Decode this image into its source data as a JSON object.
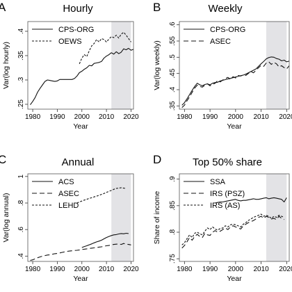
{
  "chart_data": [
    {
      "id": "hourly",
      "type": "line",
      "panel_letter": "A",
      "title": "Hourly",
      "xlabel": "Year",
      "ylabel": "Var(log hourly)",
      "xlim": [
        1978,
        2021
      ],
      "ylim": [
        0.24,
        0.42
      ],
      "xticks": [
        1980,
        1990,
        2000,
        2010,
        2020
      ],
      "yticks": [
        0.25,
        0.3,
        0.35,
        0.4
      ],
      "ytick_labels": [
        ".25",
        ".3",
        ".35",
        ".4"
      ],
      "shaded_region": [
        2012,
        2020
      ],
      "legend": "top-left",
      "series": [
        {
          "name": "CPS-ORG",
          "dash": "solid",
          "x": [
            1979,
            1980,
            1981,
            1982,
            1983,
            1984,
            1985,
            1986,
            1987,
            1988,
            1989,
            1990,
            1991,
            1992,
            1993,
            1994,
            1995,
            1996,
            1997,
            1998,
            1999,
            2000,
            2001,
            2002,
            2003,
            2004,
            2005,
            2006,
            2007,
            2008,
            2009,
            2010,
            2011,
            2012,
            2013,
            2014,
            2015,
            2016,
            2017,
            2018,
            2019,
            2020,
            2021
          ],
          "y": [
            0.249,
            0.256,
            0.264,
            0.275,
            0.283,
            0.29,
            0.297,
            0.3,
            0.299,
            0.298,
            0.297,
            0.298,
            0.301,
            0.301,
            0.301,
            0.301,
            0.301,
            0.301,
            0.303,
            0.308,
            0.315,
            0.318,
            0.322,
            0.325,
            0.33,
            0.329,
            0.334,
            0.335,
            0.336,
            0.338,
            0.345,
            0.349,
            0.352,
            0.356,
            0.353,
            0.358,
            0.354,
            0.357,
            0.364,
            0.362,
            0.365,
            0.361,
            0.363
          ]
        },
        {
          "name": "OEWS",
          "dash": "short",
          "x": [
            1999,
            2000,
            2001,
            2002,
            2003,
            2004,
            2005,
            2006,
            2007,
            2008,
            2009,
            2010,
            2011,
            2012,
            2013,
            2014,
            2015,
            2016,
            2017,
            2018,
            2019,
            2020
          ],
          "y": [
            0.333,
            0.345,
            0.352,
            0.348,
            0.36,
            0.37,
            0.375,
            0.383,
            0.378,
            0.385,
            0.383,
            0.378,
            0.384,
            0.389,
            0.387,
            0.392,
            0.386,
            0.394,
            0.398,
            0.392,
            0.385,
            0.378
          ]
        }
      ]
    },
    {
      "id": "weekly",
      "type": "line",
      "panel_letter": "B",
      "title": "Weekly",
      "xlabel": "Year",
      "ylabel": "Var(log weekly)",
      "xlim": [
        1978,
        2021
      ],
      "ylim": [
        0.34,
        0.61
      ],
      "xticks": [
        1980,
        1990,
        2000,
        2010,
        2020
      ],
      "yticks": [
        0.35,
        0.4,
        0.45,
        0.5,
        0.55,
        0.6
      ],
      "ytick_labels": [
        ".35",
        ".4",
        ".45",
        ".5",
        ".55",
        ".6"
      ],
      "shaded_region": [
        2012,
        2020
      ],
      "legend": "top-left",
      "series": [
        {
          "name": "CPS-ORG",
          "dash": "solid",
          "x": [
            1979,
            1980,
            1981,
            1982,
            1983,
            1984,
            1985,
            1986,
            1987,
            1988,
            1989,
            1990,
            1991,
            1992,
            1993,
            1994,
            1995,
            1996,
            1997,
            1998,
            1999,
            2000,
            2001,
            2002,
            2003,
            2004,
            2005,
            2006,
            2007,
            2008,
            2009,
            2010,
            2011,
            2012,
            2013,
            2014,
            2015,
            2016,
            2017,
            2018,
            2019,
            2020,
            2021
          ],
          "y": [
            0.352,
            0.36,
            0.372,
            0.385,
            0.398,
            0.41,
            0.42,
            0.415,
            0.412,
            0.416,
            0.418,
            0.415,
            0.42,
            0.422,
            0.423,
            0.427,
            0.429,
            0.431,
            0.433,
            0.435,
            0.437,
            0.439,
            0.441,
            0.443,
            0.445,
            0.448,
            0.452,
            0.456,
            0.46,
            0.464,
            0.472,
            0.48,
            0.487,
            0.495,
            0.499,
            0.501,
            0.5,
            0.496,
            0.494,
            0.489,
            0.491,
            0.486,
            0.488
          ]
        },
        {
          "name": "ASEC",
          "dash": "long",
          "x": [
            1979,
            1980,
            1981,
            1982,
            1983,
            1984,
            1985,
            1986,
            1987,
            1988,
            1989,
            1990,
            1991,
            1992,
            1993,
            1994,
            1995,
            1996,
            1997,
            1998,
            1999,
            2000,
            2001,
            2002,
            2003,
            2004,
            2005,
            2006,
            2007,
            2008,
            2009,
            2010,
            2011,
            2012,
            2013,
            2014,
            2015,
            2016,
            2017,
            2018,
            2019,
            2020,
            2021
          ],
          "y": [
            0.345,
            0.352,
            0.366,
            0.378,
            0.392,
            0.405,
            0.414,
            0.41,
            0.408,
            0.414,
            0.418,
            0.412,
            0.416,
            0.42,
            0.428,
            0.424,
            0.43,
            0.434,
            0.438,
            0.432,
            0.44,
            0.436,
            0.444,
            0.442,
            0.446,
            0.444,
            0.45,
            0.456,
            0.452,
            0.46,
            0.468,
            0.475,
            0.472,
            0.482,
            0.486,
            0.478,
            0.484,
            0.48,
            0.47,
            0.474,
            0.468,
            0.464,
            0.474
          ]
        }
      ]
    },
    {
      "id": "annual",
      "type": "line",
      "panel_letter": "C",
      "title": "Annual",
      "xlabel": "Year",
      "ylabel": "Var(log annual)",
      "xlim": [
        1978,
        2021
      ],
      "ylim": [
        0.36,
        1.02
      ],
      "xticks": [
        1980,
        1990,
        2000,
        2010,
        2020
      ],
      "yticks": [
        0.4,
        0.6,
        0.8,
        1.0
      ],
      "ytick_labels": [
        ".4",
        ".6",
        ".8",
        "1"
      ],
      "shaded_region": [
        2012,
        2020
      ],
      "legend": "top-left",
      "series": [
        {
          "name": "ACS",
          "dash": "solid",
          "x": [
            2000,
            2001,
            2002,
            2003,
            2004,
            2005,
            2006,
            2007,
            2008,
            2009,
            2010,
            2011,
            2012,
            2013,
            2014,
            2015,
            2016,
            2017,
            2018,
            2019
          ],
          "y": [
            0.465,
            0.472,
            0.478,
            0.485,
            0.492,
            0.5,
            0.507,
            0.513,
            0.52,
            0.53,
            0.54,
            0.548,
            0.555,
            0.56,
            0.562,
            0.567,
            0.57,
            0.568,
            0.572,
            0.57
          ]
        },
        {
          "name": "ASEC",
          "dash": "long",
          "x": [
            1979,
            1980,
            1981,
            1982,
            1983,
            1984,
            1985,
            1986,
            1987,
            1988,
            1989,
            1990,
            1991,
            1992,
            1993,
            1994,
            1995,
            1996,
            1997,
            1998,
            1999,
            2000,
            2001,
            2002,
            2003,
            2004,
            2005,
            2006,
            2007,
            2008,
            2009,
            2010,
            2011,
            2012,
            2013,
            2014,
            2015,
            2016,
            2017,
            2018,
            2019,
            2020
          ],
          "y": [
            0.368,
            0.372,
            0.38,
            0.388,
            0.394,
            0.4,
            0.404,
            0.408,
            0.41,
            0.414,
            0.418,
            0.42,
            0.424,
            0.428,
            0.432,
            0.436,
            0.438,
            0.44,
            0.442,
            0.444,
            0.446,
            0.45,
            0.452,
            0.455,
            0.458,
            0.46,
            0.462,
            0.465,
            0.468,
            0.47,
            0.474,
            0.478,
            0.48,
            0.485,
            0.488,
            0.49,
            0.492,
            0.488,
            0.495,
            0.49,
            0.488,
            0.484
          ]
        },
        {
          "name": "LEHD",
          "dash": "short",
          "x": [
            1998,
            1999,
            2000,
            2001,
            2002,
            2003,
            2004,
            2005,
            2006,
            2007,
            2008,
            2009,
            2010,
            2011,
            2012,
            2013,
            2014,
            2015,
            2016,
            2017,
            2018
          ],
          "y": [
            0.8,
            0.808,
            0.815,
            0.822,
            0.828,
            0.835,
            0.84,
            0.846,
            0.852,
            0.858,
            0.865,
            0.872,
            0.88,
            0.888,
            0.895,
            0.903,
            0.91,
            0.912,
            0.915,
            0.912,
            0.91
          ]
        }
      ]
    },
    {
      "id": "top50",
      "type": "line",
      "panel_letter": "D",
      "title": "Top 50% share",
      "xlabel": "Year",
      "ylabel": "Share of income",
      "xlim": [
        1978,
        2021
      ],
      "ylim": [
        0.745,
        0.91
      ],
      "xticks": [
        1980,
        1990,
        2000,
        2010,
        2020
      ],
      "yticks": [
        0.75,
        0.8,
        0.85,
        0.9
      ],
      "ytick_labels": [
        ".75",
        ".8",
        ".85",
        ".9"
      ],
      "shaded_region": [
        2012,
        2020
      ],
      "legend": "top-left",
      "series": [
        {
          "name": "SSA",
          "dash": "solid",
          "x": [
            1992,
            1993,
            1994,
            1995,
            1996,
            1997,
            1998,
            1999,
            2000,
            2001,
            2002,
            2003,
            2004,
            2005,
            2006,
            2007,
            2008,
            2009,
            2010,
            2011,
            2012,
            2013,
            2014,
            2015,
            2016,
            2017,
            2018,
            2019,
            2020
          ],
          "y": [
            0.855,
            0.856,
            0.857,
            0.857,
            0.858,
            0.859,
            0.86,
            0.861,
            0.862,
            0.86,
            0.859,
            0.86,
            0.86,
            0.861,
            0.862,
            0.863,
            0.862,
            0.862,
            0.863,
            0.864,
            0.865,
            0.863,
            0.864,
            0.865,
            0.864,
            0.863,
            0.862,
            0.857,
            0.865
          ]
        },
        {
          "name": "IRS (PSZ)",
          "dash": "long",
          "x": [
            1979,
            1980,
            1981,
            1982,
            1983,
            1984,
            1985,
            1986,
            1987,
            1988,
            1989,
            1990,
            1991,
            1992,
            1993,
            1994,
            1995,
            1996,
            1997,
            1998,
            1999,
            2000,
            2001,
            2002,
            2003,
            2004,
            2005,
            2006,
            2007,
            2008,
            2009,
            2010,
            2011,
            2012,
            2013,
            2014,
            2015,
            2016,
            2017,
            2018,
            2019
          ],
          "y": [
            0.77,
            0.775,
            0.782,
            0.79,
            0.785,
            0.792,
            0.796,
            0.792,
            0.79,
            0.798,
            0.795,
            0.794,
            0.8,
            0.803,
            0.8,
            0.802,
            0.805,
            0.808,
            0.805,
            0.81,
            0.812,
            0.81,
            0.808,
            0.806,
            0.812,
            0.815,
            0.818,
            0.82,
            0.822,
            0.825,
            0.828,
            0.83,
            0.826,
            0.83,
            0.828,
            0.825,
            0.826,
            0.824,
            0.83,
            0.826,
            0.824
          ]
        },
        {
          "name": "IRS (AS)",
          "dash": "short",
          "x": [
            1979,
            1980,
            1981,
            1982,
            1983,
            1984,
            1985,
            1986,
            1987,
            1988,
            1989,
            1990,
            1991,
            1992,
            1993,
            1994,
            1995,
            1996,
            1997,
            1998,
            1999,
            2000,
            2001,
            2002,
            2003,
            2004,
            2005,
            2006,
            2007,
            2008,
            2009,
            2010,
            2011,
            2012,
            2013,
            2014,
            2015,
            2016,
            2017,
            2018,
            2019
          ],
          "y": [
            0.776,
            0.78,
            0.788,
            0.795,
            0.79,
            0.798,
            0.8,
            0.797,
            0.795,
            0.802,
            0.808,
            0.805,
            0.81,
            0.806,
            0.804,
            0.807,
            0.808,
            0.812,
            0.81,
            0.814,
            0.815,
            0.814,
            0.812,
            0.81,
            0.815,
            0.818,
            0.822,
            0.825,
            0.828,
            0.83,
            0.832,
            0.834,
            0.83,
            0.832,
            0.83,
            0.826,
            0.83,
            0.828,
            0.832,
            0.83,
            0.828
          ]
        }
      ]
    }
  ]
}
